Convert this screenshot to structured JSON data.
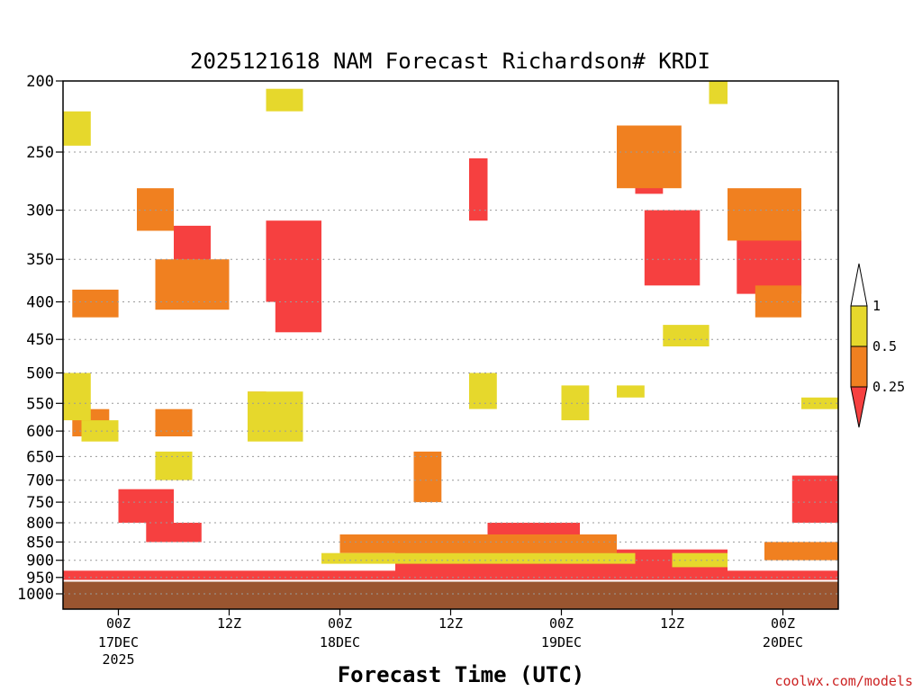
{
  "chart_data": {
    "type": "heatmap",
    "title": "2025121618 NAM Forecast Richardson# KRDI",
    "xlabel": "Forecast Time (UTC)",
    "ylabel": "",
    "credit": "coolwx.com/models",
    "pressure_levels": [
      "200",
      "250",
      "300",
      "350",
      "400",
      "450",
      "500",
      "550",
      "600",
      "650",
      "700",
      "750",
      "800",
      "850",
      "900",
      "950",
      "1000"
    ],
    "ylim": [
      200,
      1000
    ],
    "x_ticks": [
      {
        "label": "00Z",
        "date": "17DEC",
        "year": "2025",
        "hours": 6
      },
      {
        "label": "12Z",
        "date": "",
        "year": "",
        "hours": 18
      },
      {
        "label": "00Z",
        "date": "18DEC",
        "year": "",
        "hours": 30
      },
      {
        "label": "12Z",
        "date": "",
        "year": "",
        "hours": 42
      },
      {
        "label": "00Z",
        "date": "19DEC",
        "year": "",
        "hours": 54
      },
      {
        "label": "12Z",
        "date": "",
        "year": "",
        "hours": 66
      },
      {
        "label": "00Z",
        "date": "20DEC",
        "year": "",
        "hours": 78
      }
    ],
    "xlim": [
      0,
      84
    ],
    "colorbar": {
      "levels": [
        "0.25",
        "0.5",
        "1"
      ],
      "colors": {
        "below_0_25": "#f64040",
        "0_25_to_0_5": "#f08020",
        "0_5_to_1": "#e6d82c",
        "above_1": "#ffffff"
      }
    },
    "ground_color": "#9a5530",
    "series": [
      {
        "name": "Ri < 0.25",
        "color": "#f64040",
        "patches": [
          {
            "x": [
              12,
              16
            ],
            "p": [
              315,
              390
            ]
          },
          {
            "x": [
              22,
              28
            ],
            "p": [
              310,
              400
            ]
          },
          {
            "x": [
              23,
              28
            ],
            "p": [
              400,
              440
            ]
          },
          {
            "x": [
              44,
              46
            ],
            "p": [
              255,
              310
            ]
          },
          {
            "x": [
              62,
              65
            ],
            "p": [
              230,
              285
            ]
          },
          {
            "x": [
              63,
              69
            ],
            "p": [
              300,
              380
            ]
          },
          {
            "x": [
              73,
              80
            ],
            "p": [
              320,
              390
            ]
          },
          {
            "x": [
              6,
              12
            ],
            "p": [
              720,
              800
            ]
          },
          {
            "x": [
              9,
              15
            ],
            "p": [
              800,
              850
            ]
          },
          {
            "x": [
              36,
              72
            ],
            "p": [
              870,
              945
            ]
          },
          {
            "x": [
              46,
              56
            ],
            "p": [
              800,
              870
            ]
          },
          {
            "x": [
              79,
              84
            ],
            "p": [
              690,
              800
            ]
          },
          {
            "x": [
              0,
              84
            ],
            "p": [
              930,
              960
            ]
          }
        ]
      },
      {
        "name": "0.25 <= Ri < 0.5",
        "color": "#f08020",
        "patches": [
          {
            "x": [
              8,
              12
            ],
            "p": [
              280,
              320
            ]
          },
          {
            "x": [
              10,
              18
            ],
            "p": [
              350,
              410
            ]
          },
          {
            "x": [
              60,
              67
            ],
            "p": [
              230,
              280
            ]
          },
          {
            "x": [
              72,
              80
            ],
            "p": [
              280,
              330
            ]
          },
          {
            "x": [
              75,
              80
            ],
            "p": [
              380,
              420
            ]
          },
          {
            "x": [
              1,
              6
            ],
            "p": [
              385,
              420
            ]
          },
          {
            "x": [
              1,
              5
            ],
            "p": [
              560,
              610
            ]
          },
          {
            "x": [
              10,
              14
            ],
            "p": [
              560,
              610
            ]
          },
          {
            "x": [
              20,
              22
            ],
            "p": [
              530,
              600
            ]
          },
          {
            "x": [
              38,
              41
            ],
            "p": [
              640,
              750
            ]
          },
          {
            "x": [
              30,
              60
            ],
            "p": [
              830,
              880
            ]
          },
          {
            "x": [
              76,
              84
            ],
            "p": [
              850,
              900
            ]
          }
        ]
      },
      {
        "name": "0.5 <= Ri < 1",
        "color": "#e6d82c",
        "patches": [
          {
            "x": [
              0,
              3
            ],
            "p": [
              220,
              245
            ]
          },
          {
            "x": [
              22,
              26
            ],
            "p": [
              205,
              220
            ]
          },
          {
            "x": [
              0,
              3
            ],
            "p": [
              500,
              580
            ]
          },
          {
            "x": [
              2,
              6
            ],
            "p": [
              580,
              620
            ]
          },
          {
            "x": [
              10,
              14
            ],
            "p": [
              640,
              700
            ]
          },
          {
            "x": [
              20,
              26
            ],
            "p": [
              530,
              620
            ]
          },
          {
            "x": [
              44,
              47
            ],
            "p": [
              500,
              560
            ]
          },
          {
            "x": [
              54,
              57
            ],
            "p": [
              520,
              580
            ]
          },
          {
            "x": [
              60,
              63
            ],
            "p": [
              520,
              540
            ]
          },
          {
            "x": [
              65,
              70
            ],
            "p": [
              430,
              460
            ]
          },
          {
            "x": [
              70,
              72
            ],
            "p": [
              200,
              215
            ]
          },
          {
            "x": [
              80,
              84
            ],
            "p": [
              540,
              560
            ]
          },
          {
            "x": [
              28,
              62
            ],
            "p": [
              880,
              910
            ]
          },
          {
            "x": [
              66,
              72
            ],
            "p": [
              880,
              920
            ]
          }
        ]
      }
    ]
  }
}
